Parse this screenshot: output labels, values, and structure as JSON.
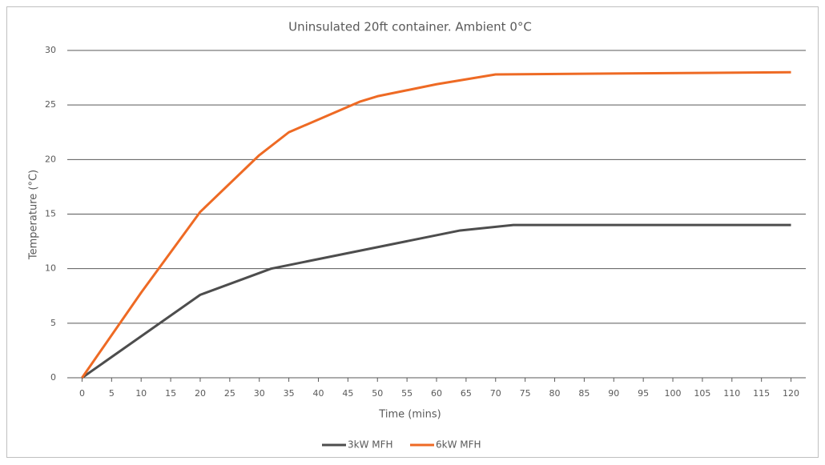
{
  "chart_data": {
    "type": "line",
    "title": "Uninsulated 20ft container. Ambient 0°C",
    "x_label": "Time (mins)",
    "y_label": "Temperature (°C)",
    "xlim": [
      -2.5,
      122.5
    ],
    "xticks": [
      0,
      5,
      10,
      15,
      20,
      25,
      30,
      35,
      40,
      45,
      50,
      55,
      60,
      65,
      70,
      75,
      80,
      85,
      90,
      95,
      100,
      105,
      110,
      115,
      120
    ],
    "ylim": [
      0,
      30
    ],
    "yticks": [
      0,
      5,
      10,
      15,
      20,
      25,
      30
    ],
    "grid": true,
    "legend": "bottom",
    "series": [
      {
        "name": "3kW MFH",
        "color": "#4d4d4d",
        "x": [
          0,
          20,
          32,
          64,
          73,
          120
        ],
        "values": [
          0,
          7.6,
          10,
          13.5,
          14,
          14
        ]
      },
      {
        "name": "6kW MFH",
        "color": "#ee6a24",
        "x": [
          0,
          10,
          20,
          30,
          35,
          47,
          50,
          60,
          70,
          120
        ],
        "values": [
          0,
          7.8,
          15.2,
          20.4,
          22.5,
          25.3,
          25.8,
          26.9,
          27.8,
          28
        ]
      }
    ]
  }
}
